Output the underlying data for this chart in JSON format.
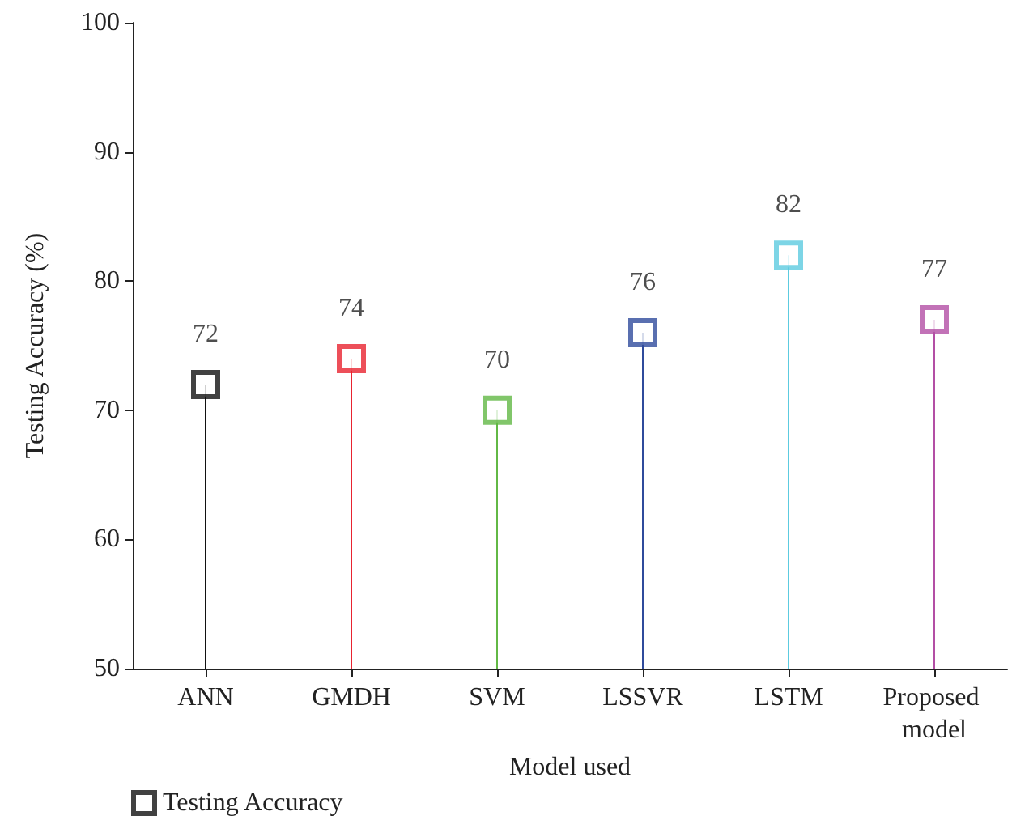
{
  "chart_data": {
    "type": "lollipop",
    "xlabel": "Model used",
    "ylabel": "Testing Accuracy (%)",
    "categories": [
      "ANN",
      "GMDH",
      "SVM",
      "LSSVR",
      "LSTM",
      "Proposed model"
    ],
    "series": [
      {
        "name": "Testing Accuracy",
        "colors": [
          "#111111",
          "#e82330",
          "#62b845",
          "#2f4b9c",
          "#5ccbe0",
          "#b34fa5"
        ],
        "values": [
          72,
          74,
          70,
          76,
          82,
          77
        ]
      }
    ],
    "ylim": [
      50,
      100
    ],
    "yticks": [
      50,
      60,
      70,
      80,
      90,
      100
    ],
    "data_labels": true,
    "marker": "square",
    "legend": "bottom left",
    "grid": false
  }
}
